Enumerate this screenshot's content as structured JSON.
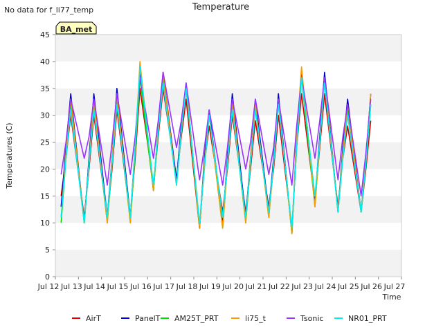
{
  "header": {
    "no_data_text": "No data for f_li77_temp",
    "badge_label": "BA_met"
  },
  "colors": {
    "background": "#ffffff",
    "plot_band_light": "#ffffff",
    "plot_band_dark": "#f2f2f2",
    "badge_fill": "#ffffc0",
    "badge_text": "#990000"
  },
  "chart_data": {
    "type": "line",
    "title": "Temperature",
    "xlabel": "Time",
    "ylabel": "Temperatures (C)",
    "ylim": [
      0,
      45
    ],
    "yticks": [
      0,
      5,
      10,
      15,
      20,
      25,
      30,
      35,
      40,
      45
    ],
    "xlim": [
      "2024-07-12",
      "2024-07-27"
    ],
    "xticks": [
      "Jul 12",
      "Jul 13",
      "Jul 14",
      "Jul 15",
      "Jul 16",
      "Jul 17",
      "Jul 18",
      "Jul 19",
      "Jul 20",
      "Jul 21",
      "Jul 22",
      "Jul 23",
      "Jul 24",
      "Jul 25",
      "Jul 26",
      "Jul 27"
    ],
    "grid": "horizontal bands",
    "legend_position": "bottom",
    "series": [
      {
        "name": "AirT",
        "color": "#dd0000",
        "x": [
          "2024-07-12 06:00",
          "2024-07-12 11:00",
          "2024-07-12 16:00",
          "2024-07-13 06:00",
          "2024-07-13 11:00",
          "2024-07-13 16:00",
          "2024-07-14 06:00",
          "2024-07-14 11:00",
          "2024-07-14 16:00",
          "2024-07-15 06:00",
          "2024-07-15 11:00",
          "2024-07-15 16:00",
          "2024-07-16 06:00",
          "2024-07-16 11:00",
          "2024-07-16 16:00",
          "2024-07-17 06:00",
          "2024-07-17 11:00",
          "2024-07-17 16:00",
          "2024-07-18 06:00",
          "2024-07-18 11:00",
          "2024-07-18 16:00",
          "2024-07-19 06:00",
          "2024-07-19 11:00",
          "2024-07-19 16:00",
          "2024-07-20 06:00",
          "2024-07-20 11:00",
          "2024-07-20 16:00",
          "2024-07-21 06:00",
          "2024-07-21 11:00",
          "2024-07-21 16:00",
          "2024-07-22 06:00",
          "2024-07-22 11:00",
          "2024-07-22 16:00",
          "2024-07-23 06:00",
          "2024-07-23 11:00",
          "2024-07-23 16:00",
          "2024-07-24 06:00",
          "2024-07-24 11:00",
          "2024-07-24 16:00",
          "2024-07-25 06:00",
          "2024-07-25 11:00",
          "2024-07-25 16:00",
          "2024-07-26 06:00",
          "2024-07-26 11:00",
          "2024-07-26 16:00"
        ],
        "y": [
          15,
          22,
          30,
          11,
          20,
          30,
          11,
          20,
          31,
          11,
          22,
          35,
          17,
          26,
          35,
          18,
          26,
          33,
          9,
          21,
          28,
          12,
          20,
          30,
          12,
          20,
          29,
          13,
          20,
          30,
          9,
          24,
          34,
          14,
          24,
          34,
          13,
          22,
          28,
          12,
          20,
          29,
          null,
          null,
          null
        ]
      },
      {
        "name": "PanelT",
        "color": "#0000cc",
        "x": [
          "2024-07-12 06:00",
          "2024-07-12 11:00",
          "2024-07-12 16:00",
          "2024-07-13 06:00",
          "2024-07-13 11:00",
          "2024-07-13 16:00",
          "2024-07-14 06:00",
          "2024-07-14 11:00",
          "2024-07-14 16:00",
          "2024-07-15 06:00",
          "2024-07-15 11:00",
          "2024-07-15 16:00",
          "2024-07-16 06:00",
          "2024-07-16 11:00",
          "2024-07-16 16:00",
          "2024-07-17 06:00",
          "2024-07-17 11:00",
          "2024-07-17 16:00",
          "2024-07-18 06:00",
          "2024-07-18 11:00",
          "2024-07-18 16:00",
          "2024-07-19 06:00",
          "2024-07-19 11:00",
          "2024-07-19 16:00",
          "2024-07-20 06:00",
          "2024-07-20 11:00",
          "2024-07-20 16:00",
          "2024-07-21 06:00",
          "2024-07-21 11:00",
          "2024-07-21 16:00",
          "2024-07-22 06:00",
          "2024-07-22 11:00",
          "2024-07-22 16:00",
          "2024-07-23 06:00",
          "2024-07-23 11:00",
          "2024-07-23 16:00",
          "2024-07-24 06:00",
          "2024-07-24 11:00",
          "2024-07-24 16:00",
          "2024-07-25 06:00",
          "2024-07-25 11:00",
          "2024-07-25 16:00",
          "2024-07-26 06:00",
          "2024-07-26 11:00",
          "2024-07-26 16:00"
        ],
        "y": [
          13,
          24,
          34,
          10,
          22,
          34,
          11,
          22,
          35,
          11,
          24,
          38,
          16,
          28,
          38,
          18,
          28,
          36,
          9,
          22,
          31,
          10,
          22,
          34,
          11,
          22,
          33,
          12,
          22,
          34,
          8,
          26,
          38,
          14,
          26,
          38,
          12,
          24,
          33,
          12,
          22,
          34,
          null,
          null,
          null
        ]
      },
      {
        "name": "AM25T_PRT",
        "color": "#00dd00",
        "x": [
          "2024-07-12 06:00",
          "2024-07-12 11:00",
          "2024-07-12 16:00",
          "2024-07-13 06:00",
          "2024-07-13 11:00",
          "2024-07-13 16:00",
          "2024-07-14 06:00",
          "2024-07-14 11:00",
          "2024-07-14 16:00",
          "2024-07-15 06:00",
          "2024-07-15 11:00",
          "2024-07-15 16:00",
          "2024-07-16 06:00",
          "2024-07-16 11:00",
          "2024-07-16 16:00",
          "2024-07-17 06:00",
          "2024-07-17 11:00",
          "2024-07-17 16:00",
          "2024-07-18 06:00",
          "2024-07-18 11:00",
          "2024-07-18 16:00",
          "2024-07-19 06:00",
          "2024-07-19 11:00",
          "2024-07-19 16:00",
          "2024-07-20 06:00",
          "2024-07-20 11:00",
          "2024-07-20 16:00",
          "2024-07-21 06:00",
          "2024-07-21 11:00",
          "2024-07-21 16:00",
          "2024-07-22 06:00",
          "2024-07-22 11:00",
          "2024-07-22 16:00",
          "2024-07-23 06:00",
          "2024-07-23 11:00",
          "2024-07-23 16:00",
          "2024-07-24 06:00",
          "2024-07-24 11:00",
          "2024-07-24 16:00",
          "2024-07-25 06:00",
          "2024-07-25 11:00",
          "2024-07-25 16:00",
          "2024-07-26 06:00",
          "2024-07-26 11:00",
          "2024-07-26 16:00"
        ],
        "y": [
          10,
          22,
          32,
          10,
          21,
          32,
          10,
          21,
          33,
          10,
          23,
          37,
          16,
          27,
          37,
          17,
          27,
          35,
          9,
          21,
          30,
          9,
          21,
          32,
          10,
          21,
          32,
          11,
          21,
          33,
          8,
          25,
          37,
          13,
          25,
          37,
          12,
          23,
          31,
          12,
          21,
          32,
          null,
          null,
          null
        ]
      },
      {
        "name": "li75_t",
        "color": "#ff9900",
        "x": [
          "2024-07-12 06:00",
          "2024-07-12 11:00",
          "2024-07-12 16:00",
          "2024-07-13 06:00",
          "2024-07-13 11:00",
          "2024-07-13 16:00",
          "2024-07-14 06:00",
          "2024-07-14 11:00",
          "2024-07-14 16:00",
          "2024-07-15 06:00",
          "2024-07-15 11:00",
          "2024-07-15 16:00",
          "2024-07-16 06:00",
          "2024-07-16 11:00",
          "2024-07-16 16:00",
          "2024-07-17 06:00",
          "2024-07-17 11:00",
          "2024-07-17 16:00",
          "2024-07-18 06:00",
          "2024-07-18 11:00",
          "2024-07-18 16:00",
          "2024-07-19 06:00",
          "2024-07-19 11:00",
          "2024-07-19 16:00",
          "2024-07-20 06:00",
          "2024-07-20 11:00",
          "2024-07-20 16:00",
          "2024-07-21 06:00",
          "2024-07-21 11:00",
          "2024-07-21 16:00",
          "2024-07-22 06:00",
          "2024-07-22 11:00",
          "2024-07-22 16:00",
          "2024-07-23 06:00",
          "2024-07-23 11:00",
          "2024-07-23 16:00",
          "2024-07-24 06:00",
          "2024-07-24 11:00",
          "2024-07-24 16:00",
          "2024-07-25 06:00",
          "2024-07-25 11:00",
          "2024-07-25 16:00",
          "2024-07-26 06:00",
          "2024-07-26 11:00",
          "2024-07-26 16:00"
        ],
        "y": [
          11,
          23,
          33,
          10,
          21,
          33,
          10,
          22,
          34,
          10,
          24,
          40,
          16,
          28,
          38,
          17,
          27,
          36,
          9,
          21,
          30,
          9,
          21,
          33,
          10,
          22,
          32,
          11,
          21,
          33,
          8,
          26,
          39,
          13,
          25,
          37,
          12,
          23,
          32,
          12,
          22,
          34,
          null,
          null,
          null
        ]
      },
      {
        "name": "Tsonic",
        "color": "#9933ff",
        "x": [
          "2024-07-12 06:00",
          "2024-07-12 11:00",
          "2024-07-12 16:00",
          "2024-07-13 06:00",
          "2024-07-13 11:00",
          "2024-07-13 16:00",
          "2024-07-14 06:00",
          "2024-07-14 11:00",
          "2024-07-14 16:00",
          "2024-07-15 06:00",
          "2024-07-15 11:00",
          "2024-07-15 16:00",
          "2024-07-16 06:00",
          "2024-07-16 11:00",
          "2024-07-16 16:00",
          "2024-07-17 06:00",
          "2024-07-17 11:00",
          "2024-07-17 16:00",
          "2024-07-18 06:00",
          "2024-07-18 11:00",
          "2024-07-18 16:00",
          "2024-07-19 06:00",
          "2024-07-19 11:00",
          "2024-07-19 16:00",
          "2024-07-20 06:00",
          "2024-07-20 11:00",
          "2024-07-20 16:00",
          "2024-07-21 06:00",
          "2024-07-21 11:00",
          "2024-07-21 16:00",
          "2024-07-22 06:00",
          "2024-07-22 11:00",
          "2024-07-22 16:00",
          "2024-07-23 06:00",
          "2024-07-23 11:00",
          "2024-07-23 16:00",
          "2024-07-24 06:00",
          "2024-07-24 11:00",
          "2024-07-24 16:00",
          "2024-07-25 06:00",
          "2024-07-25 11:00",
          "2024-07-25 16:00",
          "2024-07-26 06:00",
          "2024-07-26 11:00",
          "2024-07-26 16:00"
        ],
        "y": [
          19,
          25,
          33,
          22,
          26,
          33,
          17,
          25,
          34,
          19,
          26,
          37,
          22,
          29,
          38,
          24,
          29,
          36,
          18,
          24,
          31,
          17,
          24,
          33,
          20,
          25,
          33,
          19,
          24,
          33,
          17,
          28,
          37,
          22,
          29,
          37,
          18,
          26,
          32,
          15,
          23,
          33,
          null,
          null,
          null
        ]
      },
      {
        "name": "NR01_PRT",
        "color": "#00eeee",
        "x": [
          "2024-07-12 06:00",
          "2024-07-12 11:00",
          "2024-07-12 16:00",
          "2024-07-13 06:00",
          "2024-07-13 11:00",
          "2024-07-13 16:00",
          "2024-07-14 06:00",
          "2024-07-14 11:00",
          "2024-07-14 16:00",
          "2024-07-15 06:00",
          "2024-07-15 11:00",
          "2024-07-15 16:00",
          "2024-07-16 06:00",
          "2024-07-16 11:00",
          "2024-07-16 16:00",
          "2024-07-17 06:00",
          "2024-07-17 11:00",
          "2024-07-17 16:00",
          "2024-07-18 06:00",
          "2024-07-18 11:00",
          "2024-07-18 16:00",
          "2024-07-19 06:00",
          "2024-07-19 11:00",
          "2024-07-19 16:00",
          "2024-07-20 06:00",
          "2024-07-20 11:00",
          "2024-07-20 16:00",
          "2024-07-21 06:00",
          "2024-07-21 11:00",
          "2024-07-21 16:00",
          "2024-07-22 06:00",
          "2024-07-22 11:00",
          "2024-07-22 16:00",
          "2024-07-23 06:00",
          "2024-07-23 11:00",
          "2024-07-23 16:00",
          "2024-07-24 06:00",
          "2024-07-24 11:00",
          "2024-07-24 16:00",
          "2024-07-25 06:00",
          "2024-07-25 11:00",
          "2024-07-25 16:00",
          "2024-07-26 06:00",
          "2024-07-26 11:00",
          "2024-07-26 16:00"
        ],
        "y": [
          11,
          22,
          31,
          10,
          21,
          31,
          11,
          21,
          32,
          11,
          24,
          39,
          17,
          27,
          36,
          17,
          27,
          35,
          10,
          20,
          30,
          11,
          21,
          31,
          11,
          21,
          31,
          12,
          21,
          32,
          9,
          24,
          37,
          15,
          25,
          36,
          12,
          22,
          30,
          12,
          21,
          32,
          null,
          null,
          null
        ]
      }
    ]
  }
}
